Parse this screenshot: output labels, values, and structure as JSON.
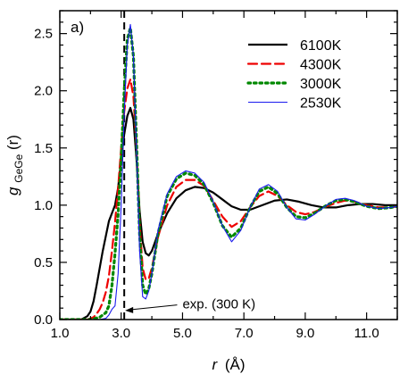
{
  "chart_data": {
    "type": "line",
    "panel_label": "a)",
    "xlabel": {
      "var": "r",
      "unit": "(Å)"
    },
    "ylabel": {
      "base": "g",
      "sub": "GeGe",
      "arg": "(r)"
    },
    "xlim": [
      1.0,
      12.0
    ],
    "ylim": [
      0.0,
      2.7
    ],
    "xticks": [
      1.0,
      3.0,
      5.0,
      7.0,
      9.0,
      11.0
    ],
    "xtick_labels": [
      "1.0",
      "3.0",
      "5.0",
      "7.0",
      "9.0",
      "11.0"
    ],
    "yticks": [
      0.0,
      0.5,
      1.0,
      1.5,
      2.0,
      2.5
    ],
    "ytick_labels": [
      "0.0",
      "0.5",
      "1.0",
      "1.5",
      "2.0",
      "2.5"
    ],
    "grid": false,
    "legend": "top-right",
    "reference_line": {
      "x": 3.1,
      "label": "exp. (300 K)",
      "label_x": 5.0,
      "label_y": 0.12,
      "arrow_y": 0.11
    },
    "series": [
      {
        "name": "6100K",
        "color": "#000000",
        "dash": "solid",
        "width": 2.2,
        "points": [
          [
            1.0,
            0
          ],
          [
            1.7,
            0
          ],
          [
            1.9,
            0.03
          ],
          [
            2.0,
            0.07
          ],
          [
            2.1,
            0.16
          ],
          [
            2.2,
            0.3
          ],
          [
            2.3,
            0.45
          ],
          [
            2.4,
            0.6
          ],
          [
            2.5,
            0.73
          ],
          [
            2.6,
            0.86
          ],
          [
            2.7,
            0.93
          ],
          [
            2.8,
            1.0
          ],
          [
            2.9,
            1.15
          ],
          [
            3.0,
            1.4
          ],
          [
            3.1,
            1.62
          ],
          [
            3.2,
            1.78
          ],
          [
            3.3,
            1.85
          ],
          [
            3.4,
            1.75
          ],
          [
            3.5,
            1.4
          ],
          [
            3.6,
            0.95
          ],
          [
            3.7,
            0.68
          ],
          [
            3.8,
            0.58
          ],
          [
            3.9,
            0.56
          ],
          [
            4.0,
            0.6
          ],
          [
            4.2,
            0.75
          ],
          [
            4.5,
            0.93
          ],
          [
            4.8,
            1.06
          ],
          [
            5.1,
            1.13
          ],
          [
            5.4,
            1.16
          ],
          [
            5.7,
            1.15
          ],
          [
            6.0,
            1.11
          ],
          [
            6.3,
            1.05
          ],
          [
            6.6,
            0.99
          ],
          [
            6.9,
            0.96
          ],
          [
            7.2,
            0.96
          ],
          [
            7.6,
            1.0
          ],
          [
            8.0,
            1.04
          ],
          [
            8.4,
            1.05
          ],
          [
            8.8,
            1.03
          ],
          [
            9.2,
            1.0
          ],
          [
            9.6,
            0.98
          ],
          [
            10.0,
            0.98
          ],
          [
            10.4,
            1.0
          ],
          [
            10.8,
            1.01
          ],
          [
            11.2,
            1.01
          ],
          [
            11.6,
            1.0
          ],
          [
            12.0,
            1.0
          ]
        ]
      },
      {
        "name": "4300K",
        "color": "#ee0000",
        "dash": "10 5",
        "width": 2.2,
        "points": [
          [
            1.0,
            0
          ],
          [
            1.9,
            0
          ],
          [
            2.1,
            0.02
          ],
          [
            2.2,
            0.05
          ],
          [
            2.3,
            0.09
          ],
          [
            2.4,
            0.15
          ],
          [
            2.5,
            0.24
          ],
          [
            2.6,
            0.38
          ],
          [
            2.7,
            0.6
          ],
          [
            2.8,
            0.85
          ],
          [
            2.9,
            1.15
          ],
          [
            3.0,
            1.5
          ],
          [
            3.1,
            1.82
          ],
          [
            3.2,
            2.02
          ],
          [
            3.3,
            2.1
          ],
          [
            3.4,
            1.95
          ],
          [
            3.5,
            1.5
          ],
          [
            3.6,
            0.85
          ],
          [
            3.7,
            0.45
          ],
          [
            3.8,
            0.35
          ],
          [
            3.9,
            0.36
          ],
          [
            4.0,
            0.45
          ],
          [
            4.2,
            0.72
          ],
          [
            4.5,
            1.0
          ],
          [
            4.8,
            1.16
          ],
          [
            5.1,
            1.22
          ],
          [
            5.4,
            1.22
          ],
          [
            5.7,
            1.17
          ],
          [
            6.0,
            1.04
          ],
          [
            6.3,
            0.9
          ],
          [
            6.6,
            0.81
          ],
          [
            6.9,
            0.86
          ],
          [
            7.2,
            0.98
          ],
          [
            7.5,
            1.08
          ],
          [
            7.8,
            1.12
          ],
          [
            8.1,
            1.08
          ],
          [
            8.4,
            1.0
          ],
          [
            8.7,
            0.94
          ],
          [
            9.0,
            0.92
          ],
          [
            9.3,
            0.94
          ],
          [
            9.7,
            0.99
          ],
          [
            10.0,
            1.02
          ],
          [
            10.3,
            1.04
          ],
          [
            10.6,
            1.03
          ],
          [
            11.0,
            1.0
          ],
          [
            11.4,
            0.98
          ],
          [
            11.8,
            0.98
          ],
          [
            12.0,
            0.99
          ]
        ]
      },
      {
        "name": "3000K",
        "color": "#008800",
        "dash": "2.5 4",
        "width": 3.2,
        "points": [
          [
            1.0,
            0
          ],
          [
            2.0,
            0
          ],
          [
            2.3,
            0.02
          ],
          [
            2.5,
            0.06
          ],
          [
            2.6,
            0.12
          ],
          [
            2.7,
            0.3
          ],
          [
            2.8,
            0.58
          ],
          [
            2.9,
            0.92
          ],
          [
            3.0,
            1.4
          ],
          [
            3.1,
            2.0
          ],
          [
            3.2,
            2.45
          ],
          [
            3.3,
            2.55
          ],
          [
            3.4,
            2.3
          ],
          [
            3.5,
            1.55
          ],
          [
            3.6,
            0.75
          ],
          [
            3.7,
            0.3
          ],
          [
            3.8,
            0.22
          ],
          [
            3.9,
            0.27
          ],
          [
            4.0,
            0.4
          ],
          [
            4.2,
            0.75
          ],
          [
            4.5,
            1.08
          ],
          [
            4.8,
            1.23
          ],
          [
            5.1,
            1.28
          ],
          [
            5.4,
            1.26
          ],
          [
            5.7,
            1.18
          ],
          [
            6.0,
            1.02
          ],
          [
            6.3,
            0.82
          ],
          [
            6.6,
            0.72
          ],
          [
            6.9,
            0.8
          ],
          [
            7.2,
            0.98
          ],
          [
            7.5,
            1.12
          ],
          [
            7.8,
            1.16
          ],
          [
            8.1,
            1.1
          ],
          [
            8.4,
            0.98
          ],
          [
            8.7,
            0.9
          ],
          [
            9.0,
            0.89
          ],
          [
            9.3,
            0.93
          ],
          [
            9.7,
            1.0
          ],
          [
            10.0,
            1.04
          ],
          [
            10.3,
            1.05
          ],
          [
            10.6,
            1.03
          ],
          [
            11.0,
            0.99
          ],
          [
            11.4,
            0.97
          ],
          [
            11.8,
            0.98
          ],
          [
            12.0,
            0.99
          ]
        ]
      },
      {
        "name": "2530K",
        "color": "#1a1aee",
        "dash": "solid",
        "width": 1.1,
        "points": [
          [
            1.0,
            0
          ],
          [
            2.3,
            0
          ],
          [
            2.5,
            0.01
          ],
          [
            2.6,
            0.04
          ],
          [
            2.7,
            0.09
          ],
          [
            2.8,
            0.12
          ],
          [
            2.9,
            0.4
          ],
          [
            3.0,
            1.0
          ],
          [
            3.1,
            1.8
          ],
          [
            3.2,
            2.4
          ],
          [
            3.3,
            2.58
          ],
          [
            3.4,
            2.3
          ],
          [
            3.5,
            1.5
          ],
          [
            3.6,
            0.6
          ],
          [
            3.7,
            0.2
          ],
          [
            3.8,
            0.18
          ],
          [
            3.9,
            0.25
          ],
          [
            4.0,
            0.4
          ],
          [
            4.2,
            0.78
          ],
          [
            4.5,
            1.1
          ],
          [
            4.8,
            1.25
          ],
          [
            5.1,
            1.3
          ],
          [
            5.4,
            1.28
          ],
          [
            5.7,
            1.2
          ],
          [
            6.0,
            1.03
          ],
          [
            6.3,
            0.82
          ],
          [
            6.6,
            0.68
          ],
          [
            6.9,
            0.78
          ],
          [
            7.2,
            0.98
          ],
          [
            7.5,
            1.14
          ],
          [
            7.8,
            1.18
          ],
          [
            8.1,
            1.12
          ],
          [
            8.4,
            0.98
          ],
          [
            8.7,
            0.88
          ],
          [
            9.0,
            0.87
          ],
          [
            9.3,
            0.92
          ],
          [
            9.7,
            1.0
          ],
          [
            10.0,
            1.05
          ],
          [
            10.3,
            1.06
          ],
          [
            10.6,
            1.04
          ],
          [
            11.0,
            0.99
          ],
          [
            11.4,
            0.97
          ],
          [
            11.8,
            0.98
          ],
          [
            12.0,
            0.99
          ]
        ]
      }
    ]
  }
}
